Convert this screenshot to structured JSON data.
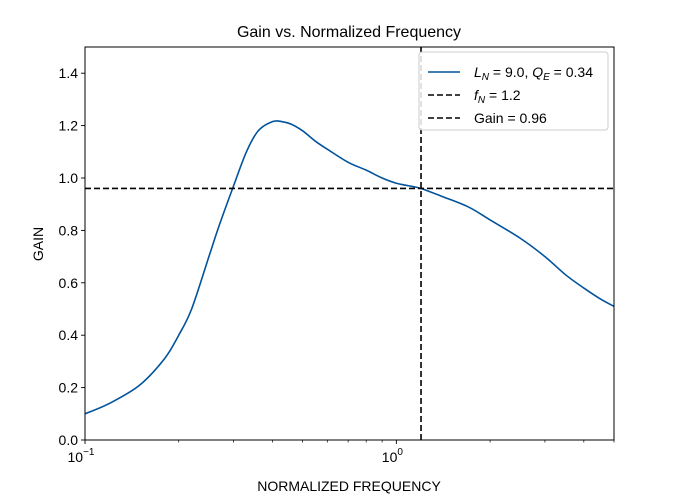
{
  "chart_data": {
    "type": "line",
    "title": "Gain vs. Normalized Frequency",
    "xlabel": "NORMALIZED FREQUENCY",
    "ylabel": "GAIN",
    "x_scale": "log",
    "xlim": [
      0.1,
      5.0
    ],
    "ylim": [
      0,
      1.5
    ],
    "x_ticks": [
      {
        "value": 0.1,
        "base": "10",
        "exp": "−1"
      },
      {
        "value": 1,
        "base": "10",
        "exp": "0"
      }
    ],
    "y_ticks": [
      "0.0",
      "0.2",
      "0.4",
      "0.6",
      "0.8",
      "1.0",
      "1.2",
      "1.4"
    ],
    "grid": false,
    "legend_position": "top-right",
    "legend": [
      {
        "parts": [
          {
            "t": "L",
            "italic": true
          },
          {
            "t": "N",
            "italic": true,
            "sub": true
          },
          {
            "t": " = 9.0, "
          },
          {
            "t": "Q",
            "italic": true
          },
          {
            "t": "E",
            "italic": true,
            "sub": true
          },
          {
            "t": " = 0.34"
          }
        ],
        "style": "solid",
        "color": "#00539c"
      },
      {
        "parts": [
          {
            "t": "f",
            "italic": true
          },
          {
            "t": "N",
            "italic": true,
            "sub": true
          },
          {
            "t": " = 1.2"
          }
        ],
        "style": "dashed",
        "color": "#000000"
      },
      {
        "parts": [
          {
            "t": "Gain = 0.96"
          }
        ],
        "style": "dashed",
        "color": "#000000"
      }
    ],
    "series": [
      {
        "color": "#00539c",
        "x": [
          0.1,
          0.12,
          0.15,
          0.18,
          0.2,
          0.22,
          0.25,
          0.27,
          0.3,
          0.33,
          0.36,
          0.4,
          0.43,
          0.46,
          0.5,
          0.55,
          0.6,
          0.7,
          0.8,
          0.9,
          1.0,
          1.1,
          1.2,
          1.4,
          1.7,
          2.0,
          2.5,
          3.0,
          3.5,
          4.0,
          4.5,
          5.0
        ],
        "y": [
          0.1,
          0.14,
          0.21,
          0.31,
          0.4,
          0.5,
          0.7,
          0.82,
          0.97,
          1.1,
          1.18,
          1.215,
          1.215,
          1.205,
          1.18,
          1.14,
          1.11,
          1.06,
          1.03,
          1.0,
          0.98,
          0.97,
          0.96,
          0.93,
          0.89,
          0.84,
          0.77,
          0.7,
          0.63,
          0.58,
          0.54,
          0.51
        ]
      }
    ],
    "vline": {
      "x": 1.2,
      "color": "#000000",
      "style": "dashed"
    },
    "hline": {
      "y": 0.96,
      "color": "#000000",
      "style": "dashed"
    }
  }
}
